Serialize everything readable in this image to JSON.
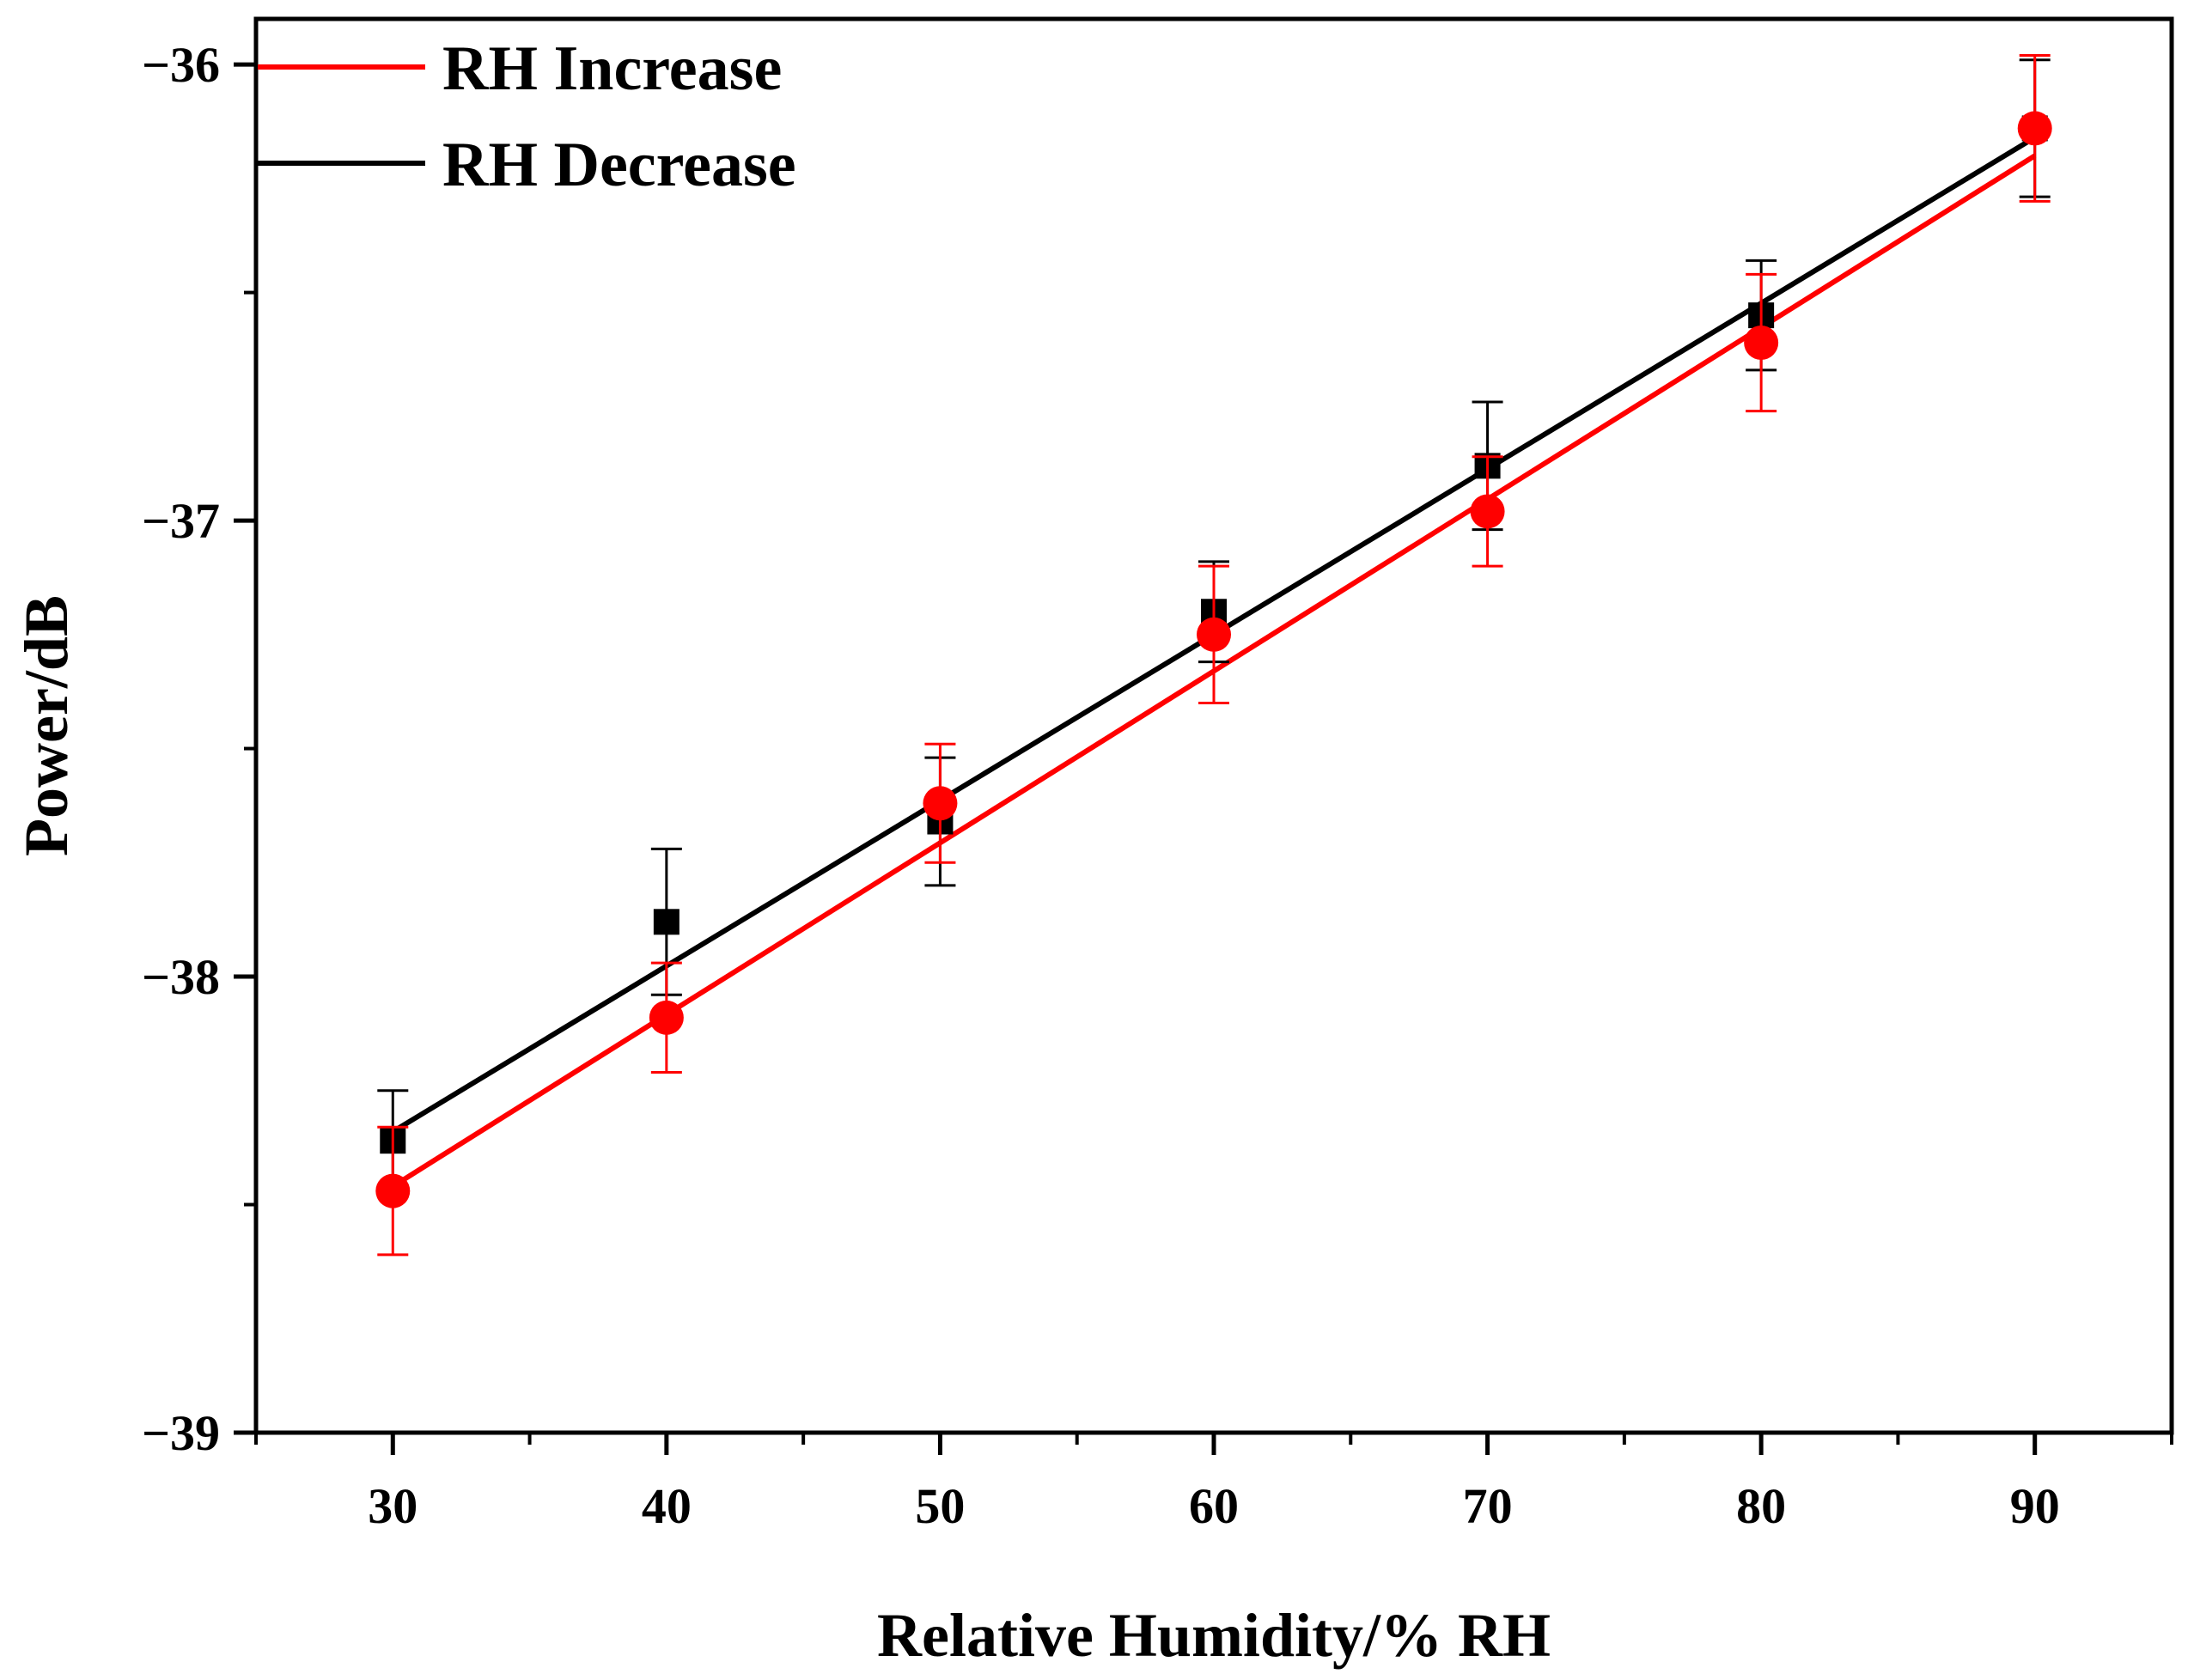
{
  "chart_data": {
    "type": "scatter",
    "title": "",
    "xlabel": "Relative Humidity/% RH",
    "ylabel": "Power/dB",
    "xlim": [
      25,
      95
    ],
    "ylim": [
      -39,
      -35.9
    ],
    "x_ticks": [
      30,
      40,
      50,
      60,
      70,
      80,
      90
    ],
    "x_tick_labels": [
      "30",
      "40",
      "50",
      "60",
      "70",
      "80",
      "90"
    ],
    "y_ticks": [
      -39,
      -38,
      -37,
      -36
    ],
    "y_tick_labels": [
      "−39",
      "−38",
      "−37",
      "−36"
    ],
    "legend_position": "top-left",
    "series": [
      {
        "name": "RH Increase",
        "color": "#ff0000",
        "marker": "circle",
        "x": [
          30,
          40,
          50,
          60,
          70,
          80,
          90
        ],
        "y": [
          -38.47,
          -38.09,
          -37.62,
          -37.25,
          -36.98,
          -36.61,
          -36.14
        ],
        "err": [
          0.14,
          0.12,
          0.13,
          0.15,
          0.12,
          0.15,
          0.16
        ],
        "fit": {
          "x": [
            30,
            90
          ],
          "y": [
            -38.46,
            -36.2
          ]
        }
      },
      {
        "name": "RH Decrease",
        "color": "#000000",
        "marker": "square",
        "x": [
          30,
          40,
          50,
          60,
          70,
          80,
          90
        ],
        "y": [
          -38.36,
          -37.88,
          -37.66,
          -37.2,
          -36.88,
          -36.55,
          -36.14
        ],
        "err": [
          0.11,
          0.16,
          0.14,
          0.11,
          0.14,
          0.12,
          0.15
        ],
        "fit": {
          "x": [
            30,
            90
          ],
          "y": [
            -38.34,
            -36.16
          ]
        }
      }
    ]
  }
}
